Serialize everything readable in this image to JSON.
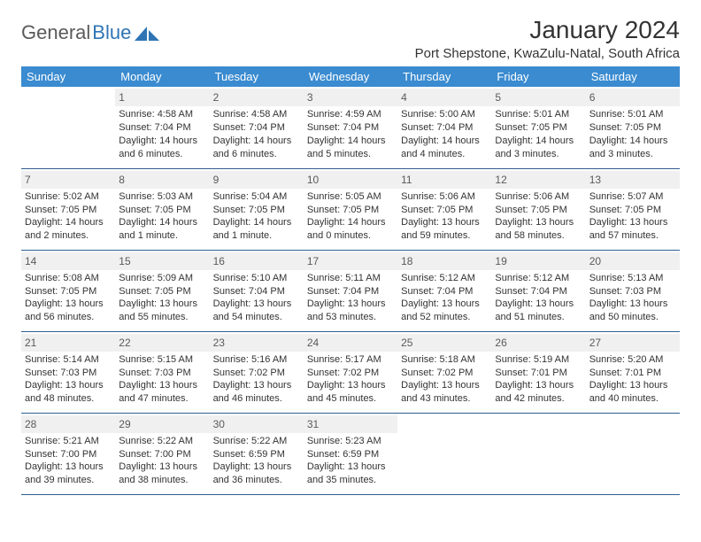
{
  "brand": {
    "name_part1": "General",
    "name_part2": "Blue"
  },
  "title": "January 2024",
  "location": "Port Shepstone, KwaZulu-Natal, South Africa",
  "colors": {
    "header_bg": "#3a8bd0",
    "header_text": "#ffffff",
    "daynum_bg": "#f0f0f0",
    "daynum_text": "#5a5a5a",
    "row_border": "#2f5f8f",
    "body_text": "#333333",
    "brand_gray": "#5a5a5a",
    "brand_blue": "#2f75b5",
    "page_bg": "#ffffff"
  },
  "day_headers": [
    "Sunday",
    "Monday",
    "Tuesday",
    "Wednesday",
    "Thursday",
    "Friday",
    "Saturday"
  ],
  "weeks": [
    [
      {
        "n": "",
        "sr": "",
        "ss": "",
        "dl": ""
      },
      {
        "n": "1",
        "sr": "4:58 AM",
        "ss": "7:04 PM",
        "dl": "14 hours and 6 minutes."
      },
      {
        "n": "2",
        "sr": "4:58 AM",
        "ss": "7:04 PM",
        "dl": "14 hours and 6 minutes."
      },
      {
        "n": "3",
        "sr": "4:59 AM",
        "ss": "7:04 PM",
        "dl": "14 hours and 5 minutes."
      },
      {
        "n": "4",
        "sr": "5:00 AM",
        "ss": "7:04 PM",
        "dl": "14 hours and 4 minutes."
      },
      {
        "n": "5",
        "sr": "5:01 AM",
        "ss": "7:05 PM",
        "dl": "14 hours and 3 minutes."
      },
      {
        "n": "6",
        "sr": "5:01 AM",
        "ss": "7:05 PM",
        "dl": "14 hours and 3 minutes."
      }
    ],
    [
      {
        "n": "7",
        "sr": "5:02 AM",
        "ss": "7:05 PM",
        "dl": "14 hours and 2 minutes."
      },
      {
        "n": "8",
        "sr": "5:03 AM",
        "ss": "7:05 PM",
        "dl": "14 hours and 1 minute."
      },
      {
        "n": "9",
        "sr": "5:04 AM",
        "ss": "7:05 PM",
        "dl": "14 hours and 1 minute."
      },
      {
        "n": "10",
        "sr": "5:05 AM",
        "ss": "7:05 PM",
        "dl": "14 hours and 0 minutes."
      },
      {
        "n": "11",
        "sr": "5:06 AM",
        "ss": "7:05 PM",
        "dl": "13 hours and 59 minutes."
      },
      {
        "n": "12",
        "sr": "5:06 AM",
        "ss": "7:05 PM",
        "dl": "13 hours and 58 minutes."
      },
      {
        "n": "13",
        "sr": "5:07 AM",
        "ss": "7:05 PM",
        "dl": "13 hours and 57 minutes."
      }
    ],
    [
      {
        "n": "14",
        "sr": "5:08 AM",
        "ss": "7:05 PM",
        "dl": "13 hours and 56 minutes."
      },
      {
        "n": "15",
        "sr": "5:09 AM",
        "ss": "7:05 PM",
        "dl": "13 hours and 55 minutes."
      },
      {
        "n": "16",
        "sr": "5:10 AM",
        "ss": "7:04 PM",
        "dl": "13 hours and 54 minutes."
      },
      {
        "n": "17",
        "sr": "5:11 AM",
        "ss": "7:04 PM",
        "dl": "13 hours and 53 minutes."
      },
      {
        "n": "18",
        "sr": "5:12 AM",
        "ss": "7:04 PM",
        "dl": "13 hours and 52 minutes."
      },
      {
        "n": "19",
        "sr": "5:12 AM",
        "ss": "7:04 PM",
        "dl": "13 hours and 51 minutes."
      },
      {
        "n": "20",
        "sr": "5:13 AM",
        "ss": "7:03 PM",
        "dl": "13 hours and 50 minutes."
      }
    ],
    [
      {
        "n": "21",
        "sr": "5:14 AM",
        "ss": "7:03 PM",
        "dl": "13 hours and 48 minutes."
      },
      {
        "n": "22",
        "sr": "5:15 AM",
        "ss": "7:03 PM",
        "dl": "13 hours and 47 minutes."
      },
      {
        "n": "23",
        "sr": "5:16 AM",
        "ss": "7:02 PM",
        "dl": "13 hours and 46 minutes."
      },
      {
        "n": "24",
        "sr": "5:17 AM",
        "ss": "7:02 PM",
        "dl": "13 hours and 45 minutes."
      },
      {
        "n": "25",
        "sr": "5:18 AM",
        "ss": "7:02 PM",
        "dl": "13 hours and 43 minutes."
      },
      {
        "n": "26",
        "sr": "5:19 AM",
        "ss": "7:01 PM",
        "dl": "13 hours and 42 minutes."
      },
      {
        "n": "27",
        "sr": "5:20 AM",
        "ss": "7:01 PM",
        "dl": "13 hours and 40 minutes."
      }
    ],
    [
      {
        "n": "28",
        "sr": "5:21 AM",
        "ss": "7:00 PM",
        "dl": "13 hours and 39 minutes."
      },
      {
        "n": "29",
        "sr": "5:22 AM",
        "ss": "7:00 PM",
        "dl": "13 hours and 38 minutes."
      },
      {
        "n": "30",
        "sr": "5:22 AM",
        "ss": "6:59 PM",
        "dl": "13 hours and 36 minutes."
      },
      {
        "n": "31",
        "sr": "5:23 AM",
        "ss": "6:59 PM",
        "dl": "13 hours and 35 minutes."
      },
      {
        "n": "",
        "sr": "",
        "ss": "",
        "dl": ""
      },
      {
        "n": "",
        "sr": "",
        "ss": "",
        "dl": ""
      },
      {
        "n": "",
        "sr": "",
        "ss": "",
        "dl": ""
      }
    ]
  ],
  "labels": {
    "sunrise": "Sunrise: ",
    "sunset": "Sunset: ",
    "daylight": "Daylight: "
  }
}
